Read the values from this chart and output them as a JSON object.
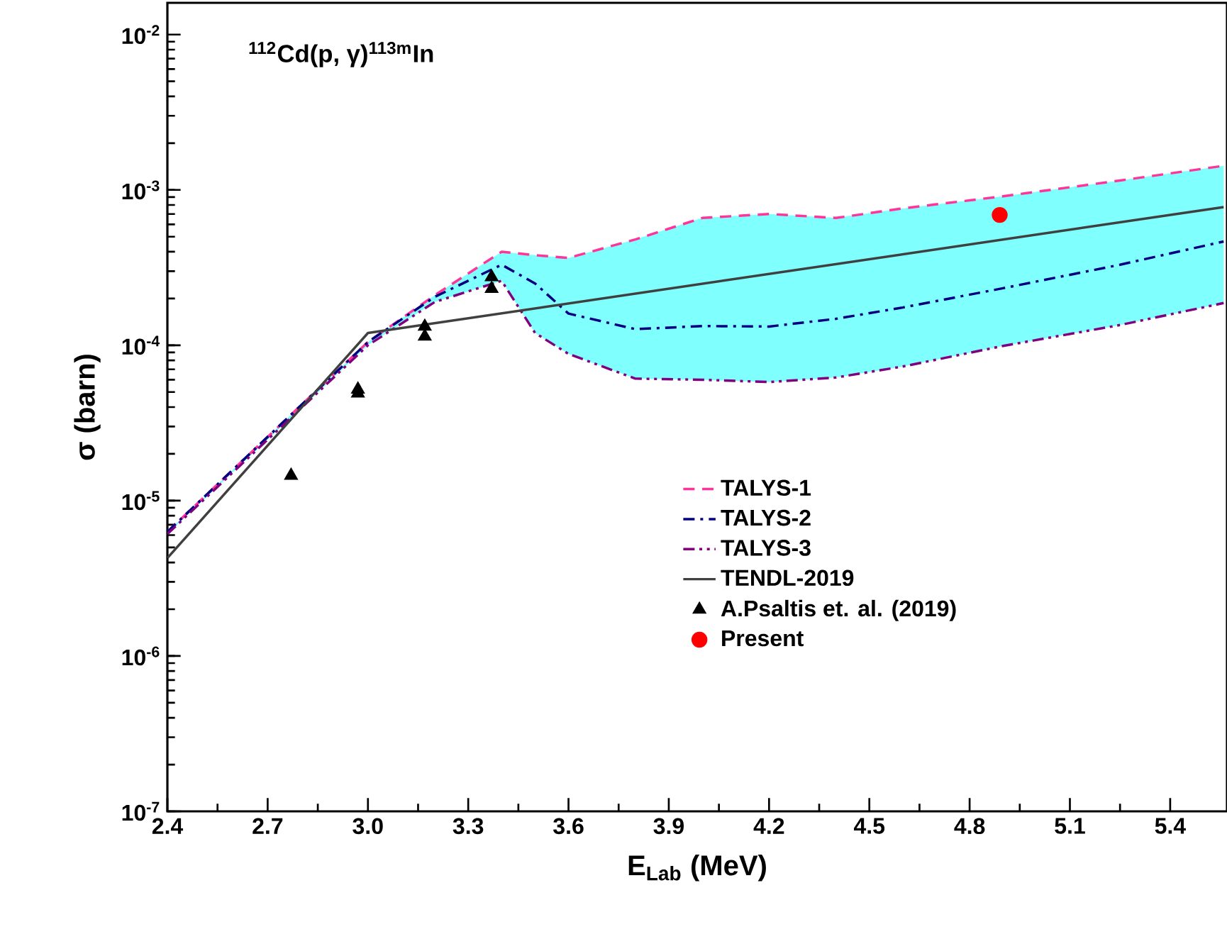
{
  "chart_data": {
    "type": "line",
    "title": "$^{112}$Cd(p, γ)$^{113m}$In",
    "xlabel": "E$_{Lab}$ (MeV)",
    "ylabel": "σ (barn)",
    "log": "y",
    "xlim": [
      2.4,
      5.57
    ],
    "ylim": [
      1e-07,
      0.016
    ],
    "xticks": [
      2.4,
      2.7,
      {
        "value": 3.0,
        "label": "3.0"
      },
      3.3,
      3.6,
      3.9,
      4.2,
      4.5,
      4.8,
      5.1,
      5.4
    ],
    "yticks": [
      {
        "value": 1e-07,
        "label": "10$^{-7}$"
      },
      {
        "value": 1e-06,
        "label": "10$^{-6}$"
      },
      {
        "value": 1e-05,
        "label": "10$^{-5}$"
      },
      {
        "value": 0.0001,
        "label": "10$^{-4}$"
      },
      {
        "value": 0.001,
        "label": "10$^{-3}$"
      },
      {
        "value": 0.01,
        "label": "10$^{-2}$"
      }
    ],
    "legend": "right",
    "grid": false,
    "series": [
      {
        "name": "TALYS-1",
        "color": "#ff3399",
        "line_style": "dashed",
        "marker": "none",
        "x": [
          2.4,
          3.0,
          3.2,
          3.4,
          3.5,
          3.6,
          3.8,
          4.0,
          4.2,
          4.4,
          4.6,
          4.9,
          5.25,
          5.56
        ],
        "values": [
          6.3e-06,
          0.000105,
          0.00021,
          0.0004,
          0.00038,
          0.000365,
          0.00048,
          0.00066,
          0.0007,
          0.00066,
          0.00076,
          0.00091,
          0.00115,
          0.00143
        ]
      },
      {
        "name": "TALYS-2",
        "color": "#000080",
        "line_style": "dashdot",
        "marker": "none",
        "x": [
          2.4,
          3.0,
          3.2,
          3.4,
          3.5,
          3.6,
          3.8,
          4.0,
          4.2,
          4.4,
          4.6,
          4.9,
          5.25,
          5.56
        ],
        "values": [
          6.3e-06,
          0.000105,
          0.000205,
          0.00033,
          0.00025,
          0.00016,
          0.000127,
          0.000133,
          0.000132,
          0.000148,
          0.000175,
          0.000233,
          0.00033,
          0.000466
        ],
        "lower": [
          6.1e-06,
          0.0001,
          0.00019,
          0.00026,
          0.00012,
          8.8e-05,
          6.1e-05,
          6e-05,
          5.8e-05,
          6.2e-05,
          7.3e-05,
          9.9e-05,
          0.000135,
          0.000187
        ],
        "upper": [
          6.3e-06,
          0.000105,
          0.00021,
          0.0004,
          0.00038,
          0.000365,
          0.00048,
          0.00066,
          0.0007,
          0.00066,
          0.00076,
          0.00091,
          0.00115,
          0.00143
        ]
      },
      {
        "name": "TALYS-3",
        "color": "#800080",
        "line_style": "dashdotdot",
        "marker": "none",
        "x": [
          2.4,
          3.0,
          3.2,
          3.4,
          3.5,
          3.6,
          3.8,
          4.0,
          4.2,
          4.4,
          4.6,
          4.9,
          5.25,
          5.56
        ],
        "values": [
          6.1e-06,
          0.0001,
          0.00019,
          0.00026,
          0.00012,
          8.8e-05,
          6.1e-05,
          6e-05,
          5.8e-05,
          6.2e-05,
          7.3e-05,
          9.9e-05,
          0.000135,
          0.000187
        ]
      },
      {
        "name": "TENDL-2019",
        "color": "#404040",
        "line_style": "solid",
        "marker": "none",
        "x": [
          2.4,
          3.0,
          5.56
        ],
        "values": [
          4.27e-06,
          0.00012,
          0.000776
        ]
      },
      {
        "name": "A.Psaltis et. al. (2019)",
        "type": "scatter",
        "color": "#000000",
        "marker": "triangle",
        "x": [
          2.77,
          2.97,
          2.97,
          3.17,
          3.17,
          3.37,
          3.37
        ],
        "values": [
          1.45e-05,
          5.2e-05,
          4.9e-05,
          0.000132,
          0.000114,
          0.000275,
          0.000231
        ]
      },
      {
        "name": "Present",
        "type": "scatter",
        "color": "#ff0000",
        "marker": "circle",
        "x": [
          4.89
        ],
        "values": [
          0.00069
        ]
      }
    ]
  }
}
